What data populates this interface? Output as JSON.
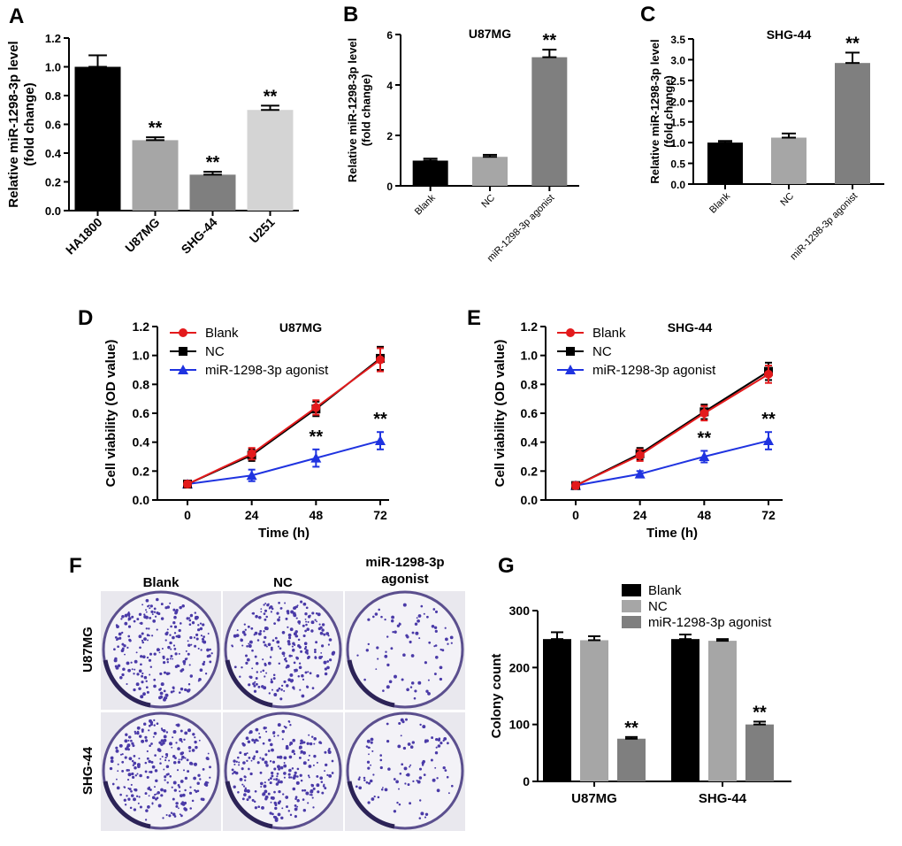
{
  "colors": {
    "black": "#000000",
    "dark_gray": "#7f7f7f",
    "mid_gray": "#a6a6a6",
    "light_gray": "#d4d4d4",
    "red": "#e31a1c",
    "blue": "#1f33e0",
    "colony_stain": "#4a3aa8",
    "colony_bg": "#f3f2f7"
  },
  "chart_data": [
    {
      "id": "A",
      "panel_label": "A",
      "type": "bar",
      "title": "",
      "ylabel": "Relative miR-1298-3p level\n(fold change)",
      "xlabel": "",
      "categories": [
        "HA1800",
        "U87MG",
        "SHG-44",
        "U251"
      ],
      "values": [
        1.0,
        0.49,
        0.25,
        0.7
      ],
      "errors": [
        0.08,
        0.02,
        0.02,
        0.03
      ],
      "bar_colors": [
        "#000000",
        "#a6a6a6",
        "#7f7f7f",
        "#d4d4d4"
      ],
      "annotations": [
        "",
        "**",
        "**",
        "**"
      ],
      "ylim": [
        0,
        1.2
      ],
      "yticks": [
        0.0,
        0.2,
        0.4,
        0.6,
        0.8,
        1.0,
        1.2
      ],
      "ytick_labels": [
        "0.0",
        "0.2",
        "0.4",
        "0.6",
        "0.8",
        "1.0",
        "1.2"
      ],
      "grid": false
    },
    {
      "id": "B",
      "panel_label": "B",
      "type": "bar",
      "title": "U87MG",
      "ylabel": "Relative miR-1298-3p level\n(fold change)",
      "xlabel": "",
      "categories": [
        "Blank",
        "NC",
        "miR-1298-3p agonist"
      ],
      "values": [
        1.0,
        1.15,
        5.1
      ],
      "errors": [
        0.08,
        0.08,
        0.3
      ],
      "bar_colors": [
        "#000000",
        "#a6a6a6",
        "#7f7f7f"
      ],
      "annotations": [
        "",
        "",
        "**"
      ],
      "ylim": [
        0,
        6
      ],
      "yticks": [
        0,
        2,
        4,
        6
      ],
      "ytick_labels": [
        "0",
        "2",
        "4",
        "6"
      ],
      "grid": false
    },
    {
      "id": "C",
      "panel_label": "C",
      "type": "bar",
      "title": "SHG-44",
      "ylabel": "Relative miR-1298-3p level\n(fold change)",
      "xlabel": "",
      "categories": [
        "Blank",
        "NC",
        "miR-1298-3p agonist"
      ],
      "values": [
        1.0,
        1.12,
        2.92
      ],
      "errors": [
        0.04,
        0.1,
        0.25
      ],
      "bar_colors": [
        "#000000",
        "#a6a6a6",
        "#7f7f7f"
      ],
      "annotations": [
        "",
        "",
        "**"
      ],
      "ylim": [
        0,
        3.5
      ],
      "yticks": [
        0.0,
        0.5,
        1.0,
        1.5,
        2.0,
        2.5,
        3.0,
        3.5
      ],
      "ytick_labels": [
        "0.0",
        "0.5",
        "1.0",
        "1.5",
        "2.0",
        "2.5",
        "3.0",
        "3.5"
      ],
      "grid": false
    },
    {
      "id": "D",
      "panel_label": "D",
      "type": "line",
      "title": "U87MG",
      "ylabel": "Cell viability (OD value)",
      "xlabel": "Time (h)",
      "x": [
        0,
        24,
        48,
        72
      ],
      "xtick_labels": [
        "0",
        "24",
        "48",
        "72"
      ],
      "series": [
        {
          "name": "Blank",
          "values": [
            0.11,
            0.32,
            0.64,
            0.97
          ],
          "errors": [
            0.02,
            0.04,
            0.05,
            0.08
          ],
          "color": "#e31a1c",
          "marker": "circle"
        },
        {
          "name": "NC",
          "values": [
            0.11,
            0.31,
            0.63,
            0.98
          ],
          "errors": [
            0.02,
            0.04,
            0.05,
            0.08
          ],
          "color": "#000000",
          "marker": "square"
        },
        {
          "name": "miR-1298-3p agonist",
          "values": [
            0.11,
            0.17,
            0.29,
            0.41
          ],
          "errors": [
            0.02,
            0.04,
            0.06,
            0.06
          ],
          "color": "#1f33e0",
          "marker": "triangle"
        }
      ],
      "annotations": [
        {
          "x": 48,
          "text": "**"
        },
        {
          "x": 72,
          "text": "**"
        }
      ],
      "ylim": [
        0,
        1.2
      ],
      "yticks": [
        0.0,
        0.2,
        0.4,
        0.6,
        0.8,
        1.0,
        1.2
      ],
      "ytick_labels": [
        "0.0",
        "0.2",
        "0.4",
        "0.6",
        "0.8",
        "1.0",
        "1.2"
      ],
      "legend": "top-left",
      "grid": false
    },
    {
      "id": "E",
      "panel_label": "E",
      "type": "line",
      "title": "SHG-44",
      "ylabel": "Cell viability (OD value)",
      "xlabel": "Time (h)",
      "x": [
        0,
        24,
        48,
        72
      ],
      "xtick_labels": [
        "0",
        "24",
        "48",
        "72"
      ],
      "series": [
        {
          "name": "Blank",
          "values": [
            0.1,
            0.31,
            0.6,
            0.87
          ],
          "errors": [
            0.02,
            0.04,
            0.05,
            0.06
          ],
          "color": "#e31a1c",
          "marker": "circle"
        },
        {
          "name": "NC",
          "values": [
            0.1,
            0.32,
            0.61,
            0.89
          ],
          "errors": [
            0.02,
            0.04,
            0.05,
            0.06
          ],
          "color": "#000000",
          "marker": "square"
        },
        {
          "name": "miR-1298-3p agonist",
          "values": [
            0.1,
            0.18,
            0.3,
            0.41
          ],
          "errors": [
            0.02,
            0.02,
            0.04,
            0.06
          ],
          "color": "#1f33e0",
          "marker": "triangle"
        }
      ],
      "annotations": [
        {
          "x": 48,
          "text": "**"
        },
        {
          "x": 72,
          "text": "**"
        }
      ],
      "ylim": [
        0,
        1.2
      ],
      "yticks": [
        0.0,
        0.2,
        0.4,
        0.6,
        0.8,
        1.0,
        1.2
      ],
      "ytick_labels": [
        "0.0",
        "0.2",
        "0.4",
        "0.6",
        "0.8",
        "1.0",
        "1.2"
      ],
      "legend": "top-left",
      "grid": false
    },
    {
      "id": "G",
      "panel_label": "G",
      "type": "bar",
      "title": "",
      "ylabel": "Colony count",
      "xlabel": "",
      "categories": [
        "U87MG",
        "SHG-44"
      ],
      "series": [
        {
          "name": "Blank",
          "values": [
            250,
            250
          ],
          "errors": [
            12,
            8
          ],
          "color": "#000000",
          "annotations": [
            "",
            ""
          ]
        },
        {
          "name": "NC",
          "values": [
            248,
            247
          ],
          "errors": [
            7,
            3
          ],
          "color": "#a6a6a6",
          "annotations": [
            "",
            ""
          ]
        },
        {
          "name": "miR-1298-3p agonist",
          "values": [
            75,
            100
          ],
          "errors": [
            3,
            5
          ],
          "color": "#7f7f7f",
          "annotations": [
            "**",
            "**"
          ]
        }
      ],
      "ylim": [
        0,
        300
      ],
      "yticks": [
        0,
        100,
        200,
        300
      ],
      "ytick_labels": [
        "0",
        "100",
        "200",
        "300"
      ],
      "legend": "top-right",
      "grid": false
    }
  ],
  "colony_panel": {
    "panel_label": "F",
    "column_labels": [
      "Blank",
      "NC",
      "miR-1298-3p\nagonist"
    ],
    "row_labels": [
      "U87MG",
      "SHG-44"
    ],
    "wells": [
      {
        "row": 0,
        "col": 0,
        "colonies": 250
      },
      {
        "row": 0,
        "col": 1,
        "colonies": 248
      },
      {
        "row": 0,
        "col": 2,
        "colonies": 75
      },
      {
        "row": 1,
        "col": 0,
        "colonies": 250
      },
      {
        "row": 1,
        "col": 1,
        "colonies": 247
      },
      {
        "row": 1,
        "col": 2,
        "colonies": 100
      }
    ]
  }
}
